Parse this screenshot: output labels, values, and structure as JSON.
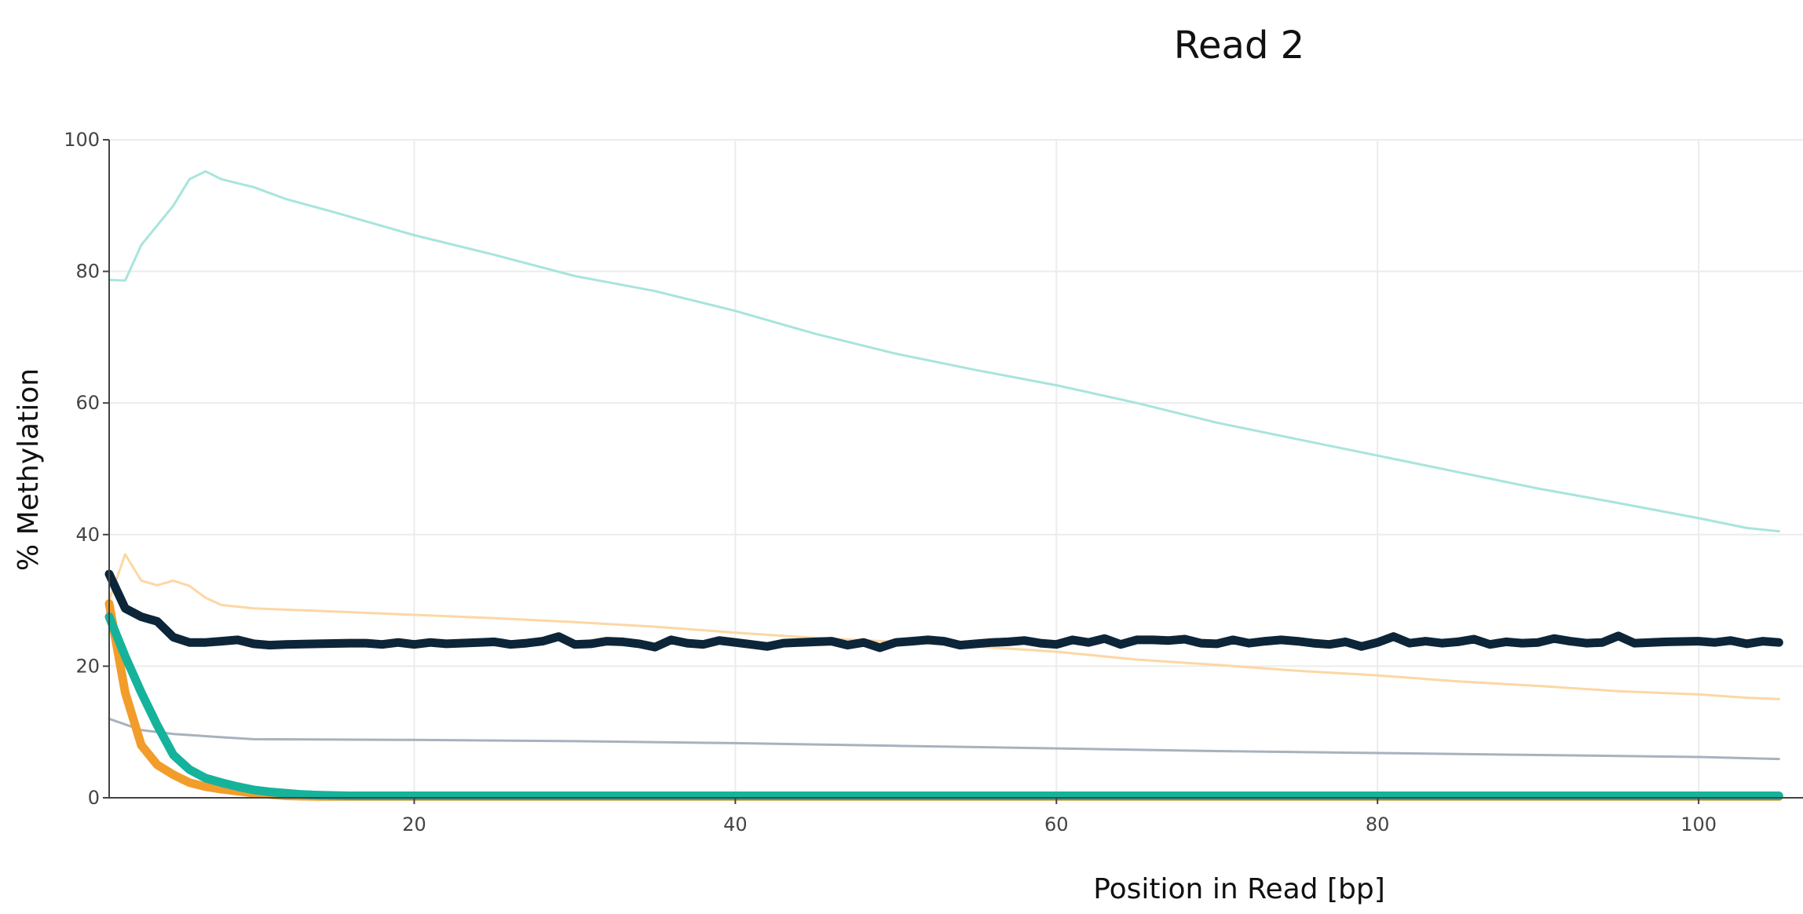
{
  "chart_data": {
    "type": "line",
    "title": "Read 2",
    "xlabel": "Position in Read [bp]",
    "ylabel": "% Methylation",
    "xlim": [
      1,
      105
    ],
    "ylim": [
      0,
      100
    ],
    "x_ticks": [
      20,
      40,
      60,
      80,
      100
    ],
    "y_ticks": [
      0,
      20,
      40,
      60,
      80,
      100
    ],
    "grid": true,
    "series": [
      {
        "color": "#a8e4dd",
        "stroke_width": 3,
        "points": [
          [
            1,
            78.7
          ],
          [
            2,
            78.6
          ],
          [
            3,
            84
          ],
          [
            4,
            87
          ],
          [
            5,
            90
          ],
          [
            6,
            94
          ],
          [
            7,
            95.2
          ],
          [
            8,
            94
          ],
          [
            10,
            92.8
          ],
          [
            12,
            91
          ],
          [
            15,
            89
          ],
          [
            20,
            85.5
          ],
          [
            25,
            82.5
          ],
          [
            30,
            79.3
          ],
          [
            35,
            77
          ],
          [
            40,
            74
          ],
          [
            45,
            70.5
          ],
          [
            50,
            67.5
          ],
          [
            55,
            65
          ],
          [
            60,
            62.7
          ],
          [
            65,
            60
          ],
          [
            70,
            57
          ],
          [
            75,
            54.5
          ],
          [
            80,
            52
          ],
          [
            85,
            49.5
          ],
          [
            90,
            47
          ],
          [
            95,
            44.8
          ],
          [
            100,
            42.5
          ],
          [
            103,
            41
          ],
          [
            105,
            40.5
          ]
        ]
      },
      {
        "color": "#fcd7a4",
        "stroke_width": 3,
        "points": [
          [
            1,
            30
          ],
          [
            2,
            37
          ],
          [
            3,
            33
          ],
          [
            4,
            32.3
          ],
          [
            5,
            33
          ],
          [
            6,
            32.2
          ],
          [
            7,
            30.4
          ],
          [
            8,
            29.3
          ],
          [
            10,
            28.8
          ],
          [
            15,
            28.3
          ],
          [
            20,
            27.8
          ],
          [
            25,
            27.3
          ],
          [
            30,
            26.7
          ],
          [
            35,
            26
          ],
          [
            40,
            25.1
          ],
          [
            45,
            24.3
          ],
          [
            50,
            23.7
          ],
          [
            55,
            23
          ],
          [
            60,
            22.2
          ],
          [
            65,
            21
          ],
          [
            70,
            20.2
          ],
          [
            75,
            19.3
          ],
          [
            80,
            18.6
          ],
          [
            85,
            17.7
          ],
          [
            90,
            17
          ],
          [
            95,
            16.2
          ],
          [
            100,
            15.7
          ],
          [
            103,
            15.2
          ],
          [
            105,
            15
          ]
        ]
      },
      {
        "color": "#a7b2bd",
        "stroke_width": 3,
        "points": [
          [
            1,
            12
          ],
          [
            3,
            10.3
          ],
          [
            5,
            9.7
          ],
          [
            8,
            9.2
          ],
          [
            10,
            8.9
          ],
          [
            20,
            8.8
          ],
          [
            30,
            8.6
          ],
          [
            40,
            8.3
          ],
          [
            50,
            7.9
          ],
          [
            60,
            7.5
          ],
          [
            70,
            7.1
          ],
          [
            80,
            6.8
          ],
          [
            90,
            6.5
          ],
          [
            100,
            6.2
          ],
          [
            105,
            5.9
          ]
        ]
      },
      {
        "color": "#f29d2b",
        "stroke_width": 11,
        "points": [
          [
            1,
            29.5
          ],
          [
            2,
            16
          ],
          [
            3,
            8
          ],
          [
            4,
            5
          ],
          [
            5,
            3.5
          ],
          [
            6,
            2.3
          ],
          [
            7,
            1.7
          ],
          [
            8,
            1.3
          ],
          [
            9,
            1
          ],
          [
            10,
            0.7
          ],
          [
            11,
            0.5
          ],
          [
            12,
            0.3
          ],
          [
            14,
            0.2
          ],
          [
            105,
            0.2
          ]
        ]
      },
      {
        "color": "#15b39b",
        "stroke_width": 11,
        "points": [
          [
            1,
            27.5
          ],
          [
            2,
            21.5
          ],
          [
            3,
            16
          ],
          [
            4,
            11
          ],
          [
            5,
            6.5
          ],
          [
            6,
            4.3
          ],
          [
            7,
            3
          ],
          [
            8,
            2.3
          ],
          [
            9,
            1.7
          ],
          [
            10,
            1.2
          ],
          [
            11,
            0.9
          ],
          [
            12,
            0.7
          ],
          [
            13,
            0.5
          ],
          [
            14,
            0.4
          ],
          [
            16,
            0.3
          ],
          [
            105,
            0.3
          ]
        ]
      },
      {
        "color": "#0d2538",
        "stroke_width": 11,
        "points": [
          [
            1,
            34
          ],
          [
            2,
            28.8
          ],
          [
            3,
            27.5
          ],
          [
            4,
            26.8
          ],
          [
            5,
            24.4
          ],
          [
            6,
            23.6
          ],
          [
            7,
            23.6
          ],
          [
            8,
            23.8
          ],
          [
            9,
            24
          ],
          [
            10,
            23.4
          ],
          [
            11,
            23.2
          ],
          [
            12,
            23.3
          ],
          [
            14,
            23.4
          ],
          [
            16,
            23.5
          ],
          [
            17,
            23.5
          ],
          [
            18,
            23.3
          ],
          [
            19,
            23.6
          ],
          [
            20,
            23.3
          ],
          [
            21,
            23.6
          ],
          [
            22,
            23.4
          ],
          [
            24,
            23.6
          ],
          [
            25,
            23.7
          ],
          [
            26,
            23.3
          ],
          [
            27,
            23.5
          ],
          [
            28,
            23.8
          ],
          [
            29,
            24.5
          ],
          [
            30,
            23.3
          ],
          [
            31,
            23.4
          ],
          [
            32,
            23.8
          ],
          [
            33,
            23.7
          ],
          [
            34,
            23.4
          ],
          [
            35,
            22.9
          ],
          [
            36,
            24
          ],
          [
            37,
            23.5
          ],
          [
            38,
            23.3
          ],
          [
            39,
            23.9
          ],
          [
            40,
            23.6
          ],
          [
            41,
            23.3
          ],
          [
            42,
            23
          ],
          [
            43,
            23.5
          ],
          [
            44,
            23.6
          ],
          [
            45,
            23.7
          ],
          [
            46,
            23.8
          ],
          [
            47,
            23.2
          ],
          [
            48,
            23.6
          ],
          [
            49,
            22.8
          ],
          [
            50,
            23.6
          ],
          [
            51,
            23.8
          ],
          [
            52,
            24
          ],
          [
            53,
            23.8
          ],
          [
            54,
            23.2
          ],
          [
            55,
            23.4
          ],
          [
            56,
            23.6
          ],
          [
            57,
            23.7
          ],
          [
            58,
            23.9
          ],
          [
            59,
            23.5
          ],
          [
            60,
            23.3
          ],
          [
            61,
            24
          ],
          [
            62,
            23.6
          ],
          [
            63,
            24.2
          ],
          [
            64,
            23.3
          ],
          [
            65,
            24
          ],
          [
            66,
            24
          ],
          [
            67,
            23.9
          ],
          [
            68,
            24.1
          ],
          [
            69,
            23.5
          ],
          [
            70,
            23.4
          ],
          [
            71,
            24
          ],
          [
            72,
            23.5
          ],
          [
            73,
            23.8
          ],
          [
            74,
            24
          ],
          [
            75,
            23.8
          ],
          [
            76,
            23.5
          ],
          [
            77,
            23.3
          ],
          [
            78,
            23.7
          ],
          [
            79,
            23
          ],
          [
            80,
            23.6
          ],
          [
            81,
            24.5
          ],
          [
            82,
            23.5
          ],
          [
            83,
            23.8
          ],
          [
            84,
            23.5
          ],
          [
            85,
            23.7
          ],
          [
            86,
            24.1
          ],
          [
            87,
            23.3
          ],
          [
            88,
            23.7
          ],
          [
            89,
            23.5
          ],
          [
            90,
            23.6
          ],
          [
            91,
            24.2
          ],
          [
            92,
            23.8
          ],
          [
            93,
            23.5
          ],
          [
            94,
            23.6
          ],
          [
            95,
            24.6
          ],
          [
            96,
            23.5
          ],
          [
            97,
            23.6
          ],
          [
            98,
            23.7
          ],
          [
            100,
            23.8
          ],
          [
            101,
            23.6
          ],
          [
            102,
            23.9
          ],
          [
            103,
            23.4
          ],
          [
            104,
            23.8
          ],
          [
            105,
            23.6
          ]
        ]
      }
    ]
  }
}
